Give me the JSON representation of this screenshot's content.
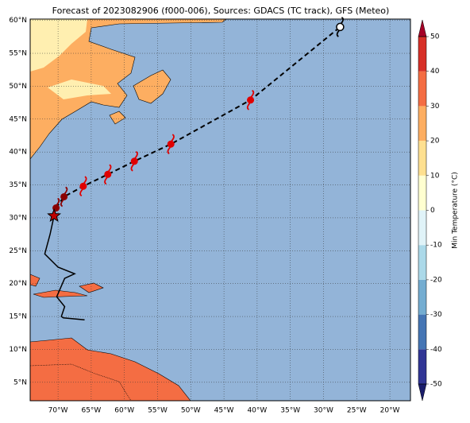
{
  "chart_data": {
    "type": "map",
    "title": "Forecast of 2023082906 (f000-006), Sources: GDACS (TC track), GFS (Meteo)",
    "xlim": [
      -74.2,
      -16.9
    ],
    "ylim": [
      2.2,
      60.2
    ],
    "xticks": [
      {
        "value": -70,
        "label": "70°W"
      },
      {
        "value": -65,
        "label": "65°W"
      },
      {
        "value": -60,
        "label": "60°W"
      },
      {
        "value": -55,
        "label": "55°W"
      },
      {
        "value": -50,
        "label": "50°W"
      },
      {
        "value": -45,
        "label": "45°W"
      },
      {
        "value": -40,
        "label": "40°W"
      },
      {
        "value": -35,
        "label": "35°W"
      },
      {
        "value": -30,
        "label": "30°W"
      },
      {
        "value": -25,
        "label": "25°W"
      },
      {
        "value": -20,
        "label": "20°W"
      }
    ],
    "yticks": [
      {
        "value": 5,
        "label": "5°N"
      },
      {
        "value": 10,
        "label": "10°N"
      },
      {
        "value": 15,
        "label": "15°N"
      },
      {
        "value": 20,
        "label": "20°N"
      },
      {
        "value": 25,
        "label": "25°N"
      },
      {
        "value": 30,
        "label": "30°N"
      },
      {
        "value": 35,
        "label": "35°N"
      },
      {
        "value": 40,
        "label": "40°N"
      },
      {
        "value": 45,
        "label": "45°N"
      },
      {
        "value": 50,
        "label": "50°N"
      },
      {
        "value": 55,
        "label": "55°N"
      },
      {
        "value": 60,
        "label": "60°N"
      }
    ],
    "grid": true,
    "track": {
      "lon": [
        -70.3,
        -69.1,
        -66.2,
        -62.5,
        -58.5,
        -53.0,
        -41.0,
        -27.5
      ],
      "lat": [
        31.5,
        33.2,
        34.8,
        36.6,
        38.6,
        41.2,
        47.9,
        59.0
      ],
      "color": "#e00000"
    },
    "current_position": {
      "lon": -70.6,
      "lat": 30.3
    },
    "past_track": {
      "lon": [
        -70.6,
        -71.2,
        -72.0,
        -70.0,
        -67.5,
        -69.0,
        -70.2,
        -69.0,
        -69.5,
        -69.2,
        -66.0
      ],
      "lat": [
        30.3,
        27.5,
        24.5,
        22.5,
        21.5,
        20.8,
        18.0,
        16.5,
        15.0,
        14.8,
        14.5
      ],
      "color": "#000000"
    },
    "colorbar": {
      "label": "Min Temperature (°C)",
      "levels": [
        -50,
        -40,
        -30,
        -20,
        -10,
        0,
        10,
        20,
        30,
        40,
        50
      ],
      "colors": [
        "#313695",
        "#4575b4",
        "#74add1",
        "#abd9e9",
        "#e0f3f8",
        "#ffffd0",
        "#fee090",
        "#fdae61",
        "#f46d43",
        "#d73027"
      ],
      "under_color": "#1a1d6b",
      "over_color": "#a50026",
      "ticks": [
        -50,
        -40,
        -30,
        -20,
        -10,
        0,
        10,
        20,
        30,
        40,
        50
      ]
    }
  }
}
